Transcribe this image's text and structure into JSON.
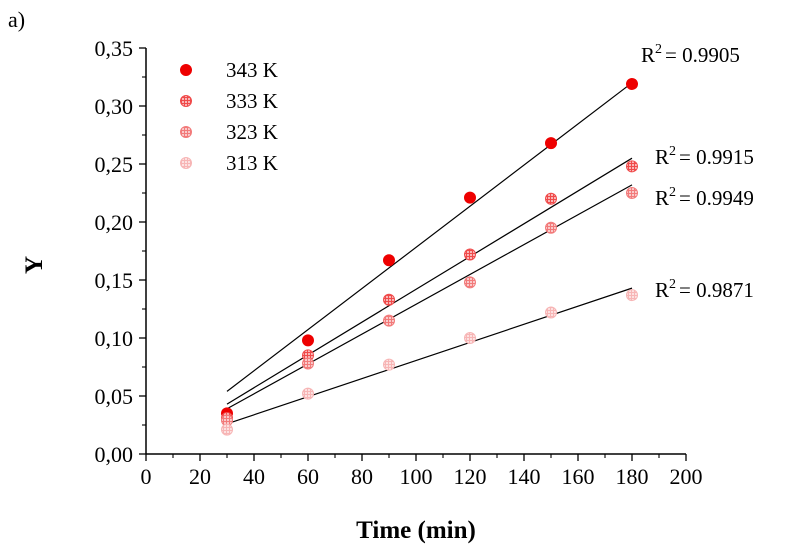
{
  "panel_label": "a)",
  "colors": {
    "axis": "#000000",
    "fit_line": "#000000",
    "series": [
      "#ee0000",
      "#f04a4a",
      "#f27a7a",
      "#f7b5b5"
    ]
  },
  "chart_data": {
    "type": "scatter",
    "title": "",
    "xlabel": "Time (min)",
    "ylabel": "Y",
    "xlim": [
      0,
      200
    ],
    "ylim": [
      0,
      0.35
    ],
    "x_ticks": [
      "0",
      "20",
      "40",
      "60",
      "80",
      "100",
      "120",
      "140",
      "160",
      "180",
      "200"
    ],
    "y_ticks": [
      "0,00",
      "0,05",
      "0,10",
      "0,15",
      "0,20",
      "0,25",
      "0,30",
      "0,35"
    ],
    "grid": false,
    "legend_position": "top-left",
    "series": [
      {
        "name": "343 K",
        "marker": "filled-circle",
        "x": [
          30,
          60,
          90,
          120,
          150,
          180
        ],
        "y": [
          0.035,
          0.098,
          0.167,
          0.221,
          0.268,
          0.319
        ],
        "fit": {
          "x0": 30,
          "y0": 0.054,
          "x1": 180,
          "y1": 0.32
        },
        "r2_label": "= 0.9905"
      },
      {
        "name": "333 K",
        "marker": "hatched-circle",
        "x": [
          30,
          60,
          90,
          120,
          150,
          180
        ],
        "y": [
          0.031,
          0.085,
          0.133,
          0.172,
          0.22,
          0.248
        ],
        "fit": {
          "x0": 30,
          "y0": 0.043,
          "x1": 180,
          "y1": 0.255
        },
        "r2_label": "= 0.9915"
      },
      {
        "name": "323 K",
        "marker": "hatched-circle",
        "x": [
          30,
          60,
          90,
          120,
          150,
          180
        ],
        "y": [
          0.029,
          0.078,
          0.115,
          0.148,
          0.195,
          0.225
        ],
        "fit": {
          "x0": 30,
          "y0": 0.039,
          "x1": 180,
          "y1": 0.232
        },
        "r2_label": "= 0.9949"
      },
      {
        "name": "313 K",
        "marker": "hatched-circle",
        "x": [
          30,
          60,
          90,
          120,
          150,
          180
        ],
        "y": [
          0.021,
          0.052,
          0.077,
          0.1,
          0.122,
          0.137
        ],
        "fit": {
          "x0": 30,
          "y0": 0.026,
          "x1": 180,
          "y1": 0.143
        },
        "r2_label": "= 0.9871"
      }
    ]
  }
}
